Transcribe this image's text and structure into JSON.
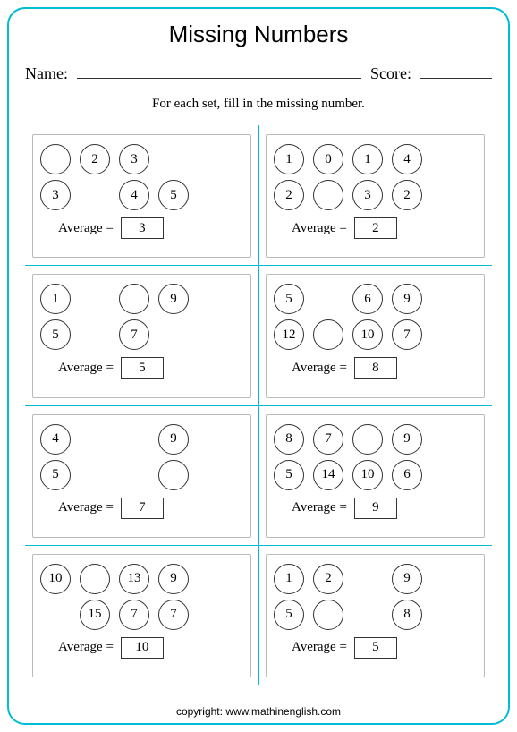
{
  "title": "Missing Numbers",
  "name_label": "Name:",
  "score_label": "Score:",
  "instruction": "For each set, fill in the missing number.",
  "avg_label": "Average =",
  "copyright": "copyright:   www.mathinenglish.com",
  "colors": {
    "border": "#00bcd4",
    "circle_border": "#333333",
    "box_border": "#bbbbbb",
    "background": "#ffffff"
  },
  "sets": [
    {
      "rows": [
        [
          {
            "v": ""
          },
          {
            "v": "2"
          },
          {
            "v": "3"
          }
        ],
        [
          {
            "v": "3"
          },
          {
            "s": true
          },
          {
            "v": "4"
          },
          {
            "v": "5"
          }
        ]
      ],
      "average": "3"
    },
    {
      "rows": [
        [
          {
            "v": "1"
          },
          {
            "v": "0"
          },
          {
            "v": "1"
          },
          {
            "v": "4"
          }
        ],
        [
          {
            "v": "2"
          },
          {
            "v": ""
          },
          {
            "v": "3"
          },
          {
            "v": "2"
          }
        ]
      ],
      "average": "2"
    },
    {
      "rows": [
        [
          {
            "v": "1"
          },
          {
            "s": true
          },
          {
            "v": ""
          },
          {
            "v": "9"
          }
        ],
        [
          {
            "v": "5"
          },
          {
            "s": true
          },
          {
            "v": "7"
          }
        ]
      ],
      "average": "5"
    },
    {
      "rows": [
        [
          {
            "v": "5"
          },
          {
            "s": true
          },
          {
            "v": "6"
          },
          {
            "v": "9"
          }
        ],
        [
          {
            "v": "12"
          },
          {
            "v": ""
          },
          {
            "v": "10"
          },
          {
            "v": "7"
          }
        ]
      ],
      "average": "8"
    },
    {
      "rows": [
        [
          {
            "v": "4"
          },
          {
            "s": true
          },
          {
            "s": true
          },
          {
            "v": "9"
          }
        ],
        [
          {
            "v": "5"
          },
          {
            "s": true
          },
          {
            "s": true
          },
          {
            "v": ""
          }
        ]
      ],
      "average": "7"
    },
    {
      "rows": [
        [
          {
            "v": "8"
          },
          {
            "v": "7"
          },
          {
            "v": ""
          },
          {
            "v": "9"
          }
        ],
        [
          {
            "v": "5"
          },
          {
            "v": "14"
          },
          {
            "v": "10"
          },
          {
            "v": "6"
          }
        ]
      ],
      "average": "9"
    },
    {
      "rows": [
        [
          {
            "v": "10"
          },
          {
            "v": ""
          },
          {
            "v": "13"
          },
          {
            "v": "9"
          }
        ],
        [
          {
            "s": true
          },
          {
            "v": "15"
          },
          {
            "v": "7"
          },
          {
            "v": "7"
          }
        ]
      ],
      "average": "10"
    },
    {
      "rows": [
        [
          {
            "v": "1"
          },
          {
            "v": "2"
          },
          {
            "s": true
          },
          {
            "v": "9"
          }
        ],
        [
          {
            "v": "5"
          },
          {
            "v": ""
          },
          {
            "s": true
          },
          {
            "v": "8"
          }
        ]
      ],
      "average": "5"
    }
  ]
}
